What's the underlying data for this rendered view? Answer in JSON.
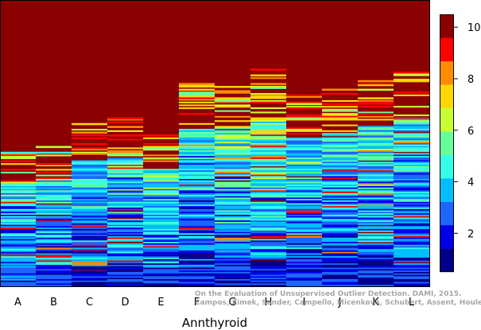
{
  "chart_data": {
    "type": "heatmap",
    "title": "",
    "xlabel": "Annthyroid",
    "ylabel": "",
    "categories": [
      "A",
      "B",
      "C",
      "D",
      "E",
      "F",
      "G",
      "H",
      "I",
      "J",
      "K",
      "L"
    ],
    "colorbar": {
      "range": [
        0.5,
        10.5
      ],
      "ticks": [
        2,
        4,
        6,
        8,
        10
      ],
      "levels": [
        "#00008b",
        "#0000e6",
        "#1a66ff",
        "#00bfff",
        "#33ffe6",
        "#66ff99",
        "#c8ff33",
        "#ffd700",
        "#ff8c00",
        "#ff0000",
        "#8b0000"
      ]
    },
    "row_count": 200,
    "columns": [
      {
        "name": "A",
        "dark_fraction": 0.53,
        "top_bands": [
          {
            "pos": 0.0,
            "value": 4
          },
          {
            "pos": 0.015,
            "value": 6
          },
          {
            "pos": 0.03,
            "value": 9
          }
        ],
        "bottom_mean": 3.8
      },
      {
        "name": "B",
        "dark_fraction": 0.51,
        "top_bands": [
          {
            "pos": 0.0,
            "value": 6
          },
          {
            "pos": 0.02,
            "value": 4
          },
          {
            "pos": 0.06,
            "value": 9
          }
        ],
        "bottom_mean": 3.8
      },
      {
        "name": "C",
        "dark_fraction": 0.43,
        "top_bands": [
          {
            "pos": 0.0,
            "value": 7
          },
          {
            "pos": 0.03,
            "value": 8
          },
          {
            "pos": 0.07,
            "value": 9
          }
        ],
        "bottom_mean": 3.5
      },
      {
        "name": "D",
        "dark_fraction": 0.41,
        "top_bands": [
          {
            "pos": 0.0,
            "value": 9
          },
          {
            "pos": 0.03,
            "value": 8
          },
          {
            "pos": 0.06,
            "value": 9
          }
        ],
        "bottom_mean": 3.9
      },
      {
        "name": "E",
        "dark_fraction": 0.47,
        "top_bands": [
          {
            "pos": 0.0,
            "value": 9
          },
          {
            "pos": 0.04,
            "value": 7
          },
          {
            "pos": 0.08,
            "value": 6
          }
        ],
        "bottom_mean": 4.2
      },
      {
        "name": "F",
        "dark_fraction": 0.29,
        "top_bands": [
          {
            "pos": 0.0,
            "value": 8
          },
          {
            "pos": 0.02,
            "value": 7
          },
          {
            "pos": 0.05,
            "value": 9
          }
        ],
        "bottom_mean": 3.6
      },
      {
        "name": "G",
        "dark_fraction": 0.3,
        "top_bands": [
          {
            "pos": 0.0,
            "value": 7
          },
          {
            "pos": 0.02,
            "value": 8
          },
          {
            "pos": 0.05,
            "value": 5
          }
        ],
        "bottom_mean": 4.4
      },
      {
        "name": "H",
        "dark_fraction": 0.24,
        "top_bands": [
          {
            "pos": 0.0,
            "value": 9
          },
          {
            "pos": 0.02,
            "value": 7
          },
          {
            "pos": 0.05,
            "value": 8
          }
        ],
        "bottom_mean": 5.0
      },
      {
        "name": "I",
        "dark_fraction": 0.33,
        "top_bands": [
          {
            "pos": 0.0,
            "value": 9
          },
          {
            "pos": 0.03,
            "value": 6
          },
          {
            "pos": 0.07,
            "value": 9
          }
        ],
        "bottom_mean": 3.9
      },
      {
        "name": "J",
        "dark_fraction": 0.31,
        "top_bands": [
          {
            "pos": 0.0,
            "value": 8
          },
          {
            "pos": 0.05,
            "value": 9
          },
          {
            "pos": 0.1,
            "value": 7
          }
        ],
        "bottom_mean": 3.8
      },
      {
        "name": "K",
        "dark_fraction": 0.28,
        "top_bands": [
          {
            "pos": 0.0,
            "value": 8
          },
          {
            "pos": 0.03,
            "value": 6
          },
          {
            "pos": 0.06,
            "value": 7
          }
        ],
        "bottom_mean": 4.0
      },
      {
        "name": "L",
        "dark_fraction": 0.25,
        "top_bands": [
          {
            "pos": 0.0,
            "value": 9
          },
          {
            "pos": 0.03,
            "value": 7
          },
          {
            "pos": 0.07,
            "value": 9
          }
        ],
        "bottom_mean": 3.9
      }
    ]
  },
  "watermark": {
    "line1": "On the Evaluation of Unsupervised Outlier Detection. DAMI, 2015.",
    "line2": "Campos, Zimek, Sander, Campello, Micenková, Schubert, Assent, Houle"
  }
}
